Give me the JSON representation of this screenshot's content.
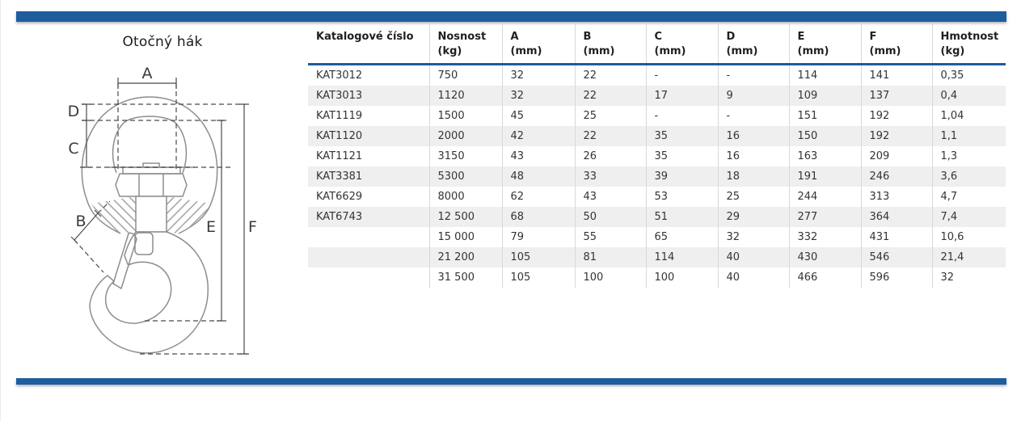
{
  "page": {
    "title": "Otočný hák"
  },
  "diagram": {
    "dimension_labels": {
      "a": "A",
      "b": "B",
      "c": "C",
      "d": "D",
      "e": "E",
      "f": "F"
    }
  },
  "table": {
    "columns": [
      {
        "label": "Katalogové číslo",
        "unit": ""
      },
      {
        "label": "Nosnost",
        "unit": "(kg)"
      },
      {
        "label": "A",
        "unit": "(mm)"
      },
      {
        "label": "B",
        "unit": "(mm)"
      },
      {
        "label": "C",
        "unit": "(mm)"
      },
      {
        "label": "D",
        "unit": "(mm)"
      },
      {
        "label": "E",
        "unit": "(mm)"
      },
      {
        "label": "F",
        "unit": "(mm)"
      },
      {
        "label": "Hmotnost",
        "unit": "(kg)"
      }
    ],
    "rows": [
      [
        "KAT3012",
        "750",
        "32",
        "22",
        "-",
        "-",
        "114",
        "141",
        "0,35"
      ],
      [
        "KAT3013",
        "1120",
        "32",
        "22",
        "17",
        "9",
        "109",
        "137",
        "0,4"
      ],
      [
        "KAT1119",
        "1500",
        "45",
        "25",
        "-",
        "-",
        "151",
        "192",
        "1,04"
      ],
      [
        "KAT1120",
        "2000",
        "42",
        "22",
        "35",
        "16",
        "150",
        "192",
        "1,1"
      ],
      [
        "KAT1121",
        "3150",
        "43",
        "26",
        "35",
        "16",
        "163",
        "209",
        "1,3"
      ],
      [
        "KAT3381",
        "5300",
        "48",
        "33",
        "39",
        "18",
        "191",
        "246",
        "3,6"
      ],
      [
        "KAT6629",
        "8000",
        "62",
        "43",
        "53",
        "25",
        "244",
        "313",
        "4,7"
      ],
      [
        "KAT6743",
        "12 500",
        "68",
        "50",
        "51",
        "29",
        "277",
        "364",
        "7,4"
      ],
      [
        "",
        "15 000",
        "79",
        "55",
        "65",
        "32",
        "332",
        "431",
        "10,6"
      ],
      [
        "",
        "21 200",
        "105",
        "81",
        "114",
        "40",
        "430",
        "546",
        "21,4"
      ],
      [
        "",
        "31 500",
        "105",
        "100",
        "100",
        "40",
        "466",
        "596",
        "32"
      ]
    ]
  },
  "colors": {
    "accent_blue": "#1e5d9e",
    "header_rule_blue": "#1d5c9c",
    "row_stripe": "#efefef"
  }
}
